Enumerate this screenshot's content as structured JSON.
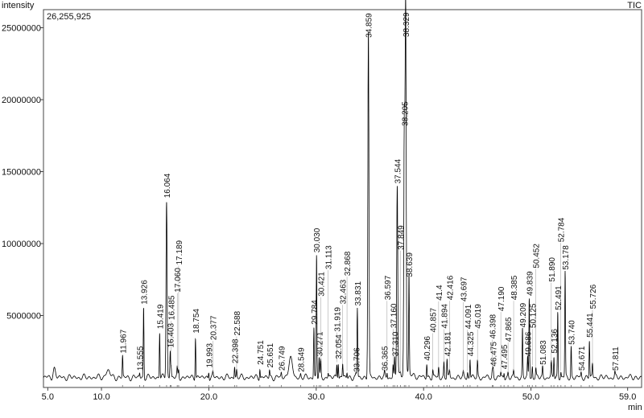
{
  "chart_data": {
    "type": "line",
    "ylabel": "intensity",
    "xlabel": "min",
    "trace_label": "TIC",
    "max_intensity_label": "26,255,925",
    "xlim": [
      4.6,
      60.3
    ],
    "ylim": [
      0,
      26255925
    ],
    "x_ticks": [
      "5.0",
      "10.0",
      "20.0",
      "30.0",
      "40.0",
      "50.0",
      "59.0"
    ],
    "x_tick_values": [
      5,
      10,
      20,
      30,
      40,
      50,
      59
    ],
    "y_ticks": [
      "5000000",
      "10000000",
      "15000000",
      "20000000",
      "25000000"
    ],
    "y_tick_values": [
      5000000,
      10000000,
      15000000,
      20000000,
      25000000
    ],
    "grid": false,
    "color": "#000000",
    "peaks": [
      {
        "rt": 11.967,
        "label": "11.967",
        "height": 2200000
      },
      {
        "rt": 13.555,
        "label": "13.555",
        "height": 1000000
      },
      {
        "rt": 13.926,
        "label": "13.926",
        "height": 5600000
      },
      {
        "rt": 15.419,
        "label": "15.419",
        "height": 3900000
      },
      {
        "rt": 16.064,
        "label": "16.064",
        "height": 13000000
      },
      {
        "rt": 16.403,
        "label": "16.403",
        "height": 2600000
      },
      {
        "rt": 16.485,
        "label": "16.485",
        "height": 1500000
      },
      {
        "rt": 17.06,
        "label": "17.060",
        "height": 1300000
      },
      {
        "rt": 17.189,
        "label": "17.189",
        "height": 1200000
      },
      {
        "rt": 18.754,
        "label": "18.754",
        "height": 3600000
      },
      {
        "rt": 19.993,
        "label": "19.993",
        "height": 1200000
      },
      {
        "rt": 20.377,
        "label": "20.377",
        "height": 1000000
      },
      {
        "rt": 22.398,
        "label": "22.398",
        "height": 1500000
      },
      {
        "rt": 22.588,
        "label": "22.588",
        "height": 1200000
      },
      {
        "rt": 24.751,
        "label": "24.751",
        "height": 1400000
      },
      {
        "rt": 25.651,
        "label": "25.651",
        "height": 1200000
      },
      {
        "rt": 26.749,
        "label": "26.749",
        "height": 1000000
      },
      {
        "rt": 28.549,
        "label": "28.549",
        "height": 900000
      },
      {
        "rt": 29.784,
        "label": "29.784",
        "height": 4200000
      },
      {
        "rt": 30.03,
        "label": "30.030",
        "height": 9200000
      },
      {
        "rt": 30.271,
        "label": "30.271",
        "height": 2000000
      },
      {
        "rt": 30.421,
        "label": "30.421",
        "height": 1800000
      },
      {
        "rt": 31.113,
        "label": "31.113",
        "height": 1000000
      },
      {
        "rt": 31.919,
        "label": "31.919",
        "height": 1700000
      },
      {
        "rt": 32.054,
        "label": "32.054",
        "height": 1800000
      },
      {
        "rt": 32.463,
        "label": "32.463",
        "height": 1600000
      },
      {
        "rt": 32.868,
        "label": "32.868",
        "height": 1100000
      },
      {
        "rt": 33.706,
        "label": "33.706",
        "height": 900000
      },
      {
        "rt": 33.831,
        "label": "33.831",
        "height": 5500000
      },
      {
        "rt": 34.859,
        "label": "34.859",
        "height": 24700000
      },
      {
        "rt": 36.365,
        "label": "36.365",
        "height": 1000000
      },
      {
        "rt": 36.597,
        "label": "36.597",
        "height": 1100000
      },
      {
        "rt": 37.16,
        "label": "37.160",
        "height": 1500000
      },
      {
        "rt": 37.31,
        "label": "37.310",
        "height": 2000000
      },
      {
        "rt": 37.544,
        "label": "37.544",
        "height": 14000000
      },
      {
        "rt": 37.849,
        "label": "37.849",
        "height": 900000
      },
      {
        "rt": 38.205,
        "label": "38.205",
        "height": 18000000
      },
      {
        "rt": 38.329,
        "label": "38.329",
        "height": 26200000
      },
      {
        "rt": 38.639,
        "label": "38.639",
        "height": 7500000
      },
      {
        "rt": 40.296,
        "label": "40.296",
        "height": 1700000
      },
      {
        "rt": 40.857,
        "label": "40.857",
        "height": 1200000
      },
      {
        "rt": 41.4,
        "label": "41.4",
        "height": 1400000
      },
      {
        "rt": 41.894,
        "label": "41.894",
        "height": 1700000
      },
      {
        "rt": 42.181,
        "label": "42.181",
        "height": 2000000
      },
      {
        "rt": 42.416,
        "label": "42.416",
        "height": 1100000
      },
      {
        "rt": 43.697,
        "label": "43.697",
        "height": 1000000
      },
      {
        "rt": 44.091,
        "label": "44.091",
        "height": 1100000
      },
      {
        "rt": 44.325,
        "label": "44.325",
        "height": 2000000
      },
      {
        "rt": 45.019,
        "label": "45.019",
        "height": 1800000
      },
      {
        "rt": 46.398,
        "label": "46.398",
        "height": 1200000
      },
      {
        "rt": 46.475,
        "label": "46.475",
        "height": 1300000
      },
      {
        "rt": 47.19,
        "label": "47.190",
        "height": 1000000
      },
      {
        "rt": 47.495,
        "label": "47.495",
        "height": 1100000
      },
      {
        "rt": 47.865,
        "label": "47.865",
        "height": 1000000
      },
      {
        "rt": 48.385,
        "label": "48.385",
        "height": 1100000
      },
      {
        "rt": 49.209,
        "label": "49.209",
        "height": 4000000
      },
      {
        "rt": 49.686,
        "label": "49.686",
        "height": 2000000
      },
      {
        "rt": 49.839,
        "label": "49.839",
        "height": 6200000
      },
      {
        "rt": 50.125,
        "label": "50.125",
        "height": 1500000
      },
      {
        "rt": 50.452,
        "label": "50.452",
        "height": 1300000
      },
      {
        "rt": 51.083,
        "label": "51.083",
        "height": 1400000
      },
      {
        "rt": 51.89,
        "label": "51.890",
        "height": 1700000
      },
      {
        "rt": 52.136,
        "label": "52.136",
        "height": 2200000
      },
      {
        "rt": 52.491,
        "label": "52.491",
        "height": 5200000
      },
      {
        "rt": 52.784,
        "label": "52.784",
        "height": 1100000
      },
      {
        "rt": 53.178,
        "label": "53.178",
        "height": 8000000
      },
      {
        "rt": 53.74,
        "label": "53.740",
        "height": 2800000
      },
      {
        "rt": 54.671,
        "label": "54.671",
        "height": 1000000
      },
      {
        "rt": 55.441,
        "label": "55.441",
        "height": 3300000
      },
      {
        "rt": 55.726,
        "label": "55.726",
        "height": 1600000
      },
      {
        "rt": 57.811,
        "label": "57.811",
        "height": 1000000
      }
    ]
  }
}
